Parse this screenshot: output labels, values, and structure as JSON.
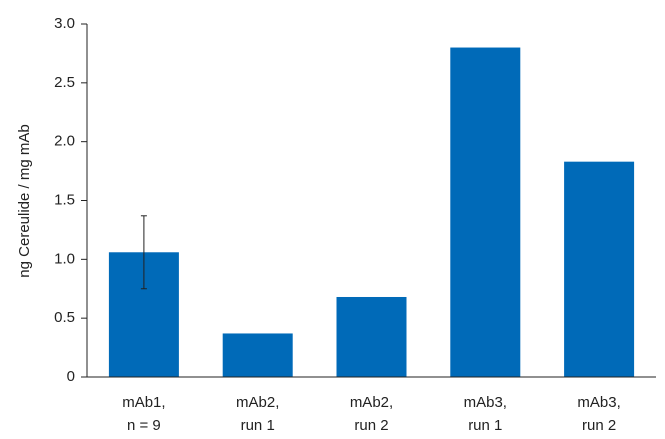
{
  "chart_data": {
    "type": "bar",
    "title": "",
    "xlabel": "",
    "ylabel": "ng Cereulide / mg mAb",
    "ylim": [
      0,
      3.0
    ],
    "y_ticks": [
      "0",
      "0.5",
      "1.0",
      "1.5",
      "2.0",
      "2.5",
      "3.0"
    ],
    "y_tick_values": [
      0,
      0.5,
      1.0,
      1.5,
      2.0,
      2.5,
      3.0
    ],
    "categories": [
      [
        "mAb1,",
        "n = 9"
      ],
      [
        "mAb2,",
        "run 1"
      ],
      [
        "mAb2,",
        "run 2"
      ],
      [
        "mAb3,",
        "run 1"
      ],
      [
        "mAb3,",
        "run 2"
      ]
    ],
    "values": [
      1.06,
      0.37,
      0.68,
      2.8,
      1.83
    ],
    "error_bars": [
      {
        "index": 0,
        "low": 0.75,
        "high": 1.37
      }
    ],
    "grid": false,
    "legend": "none",
    "bar_color": "#006ab8"
  }
}
